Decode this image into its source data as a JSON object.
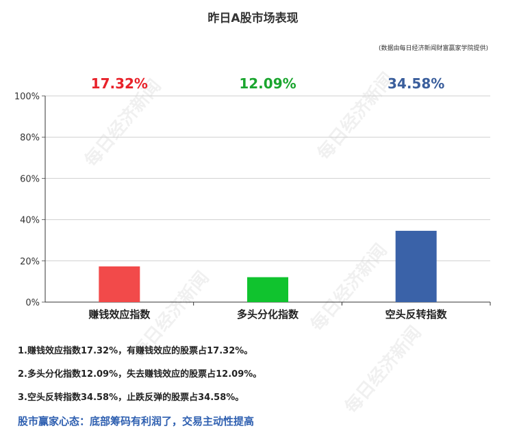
{
  "title": "昨日A股市场表现",
  "source": "(数据由每日经济新闻财富赢家学院提供)",
  "watermark": "每日经济新闻",
  "chart_data": {
    "type": "bar",
    "categories": [
      "赚钱效应指数",
      "多头分化指数",
      "空头反转指数"
    ],
    "values": [
      17.32,
      12.09,
      34.58
    ],
    "value_labels": [
      "17.32%",
      "12.09%",
      "34.58%"
    ],
    "colors": [
      "#f24a4a",
      "#10c32e",
      "#3a62a8"
    ],
    "label_colors": [
      "#e8222a",
      "#1aa52e",
      "#3a5e9c"
    ],
    "ylim": [
      0,
      100
    ],
    "yticks": [
      "0%",
      "20%",
      "40%",
      "60%",
      "80%",
      "100%"
    ],
    "grid": true
  },
  "notes": [
    "1.赚钱效应指数17.32%，有赚钱效应的股票占17.32%。",
    "2.多头分化指数12.09%，失去赚钱效应的股票占12.09%。",
    "3.空头反转指数34.58%，止跌反弹的股票占34.58%。"
  ],
  "mindset": "股市赢家心态：底部筹码有利润了，交易主动性提高"
}
